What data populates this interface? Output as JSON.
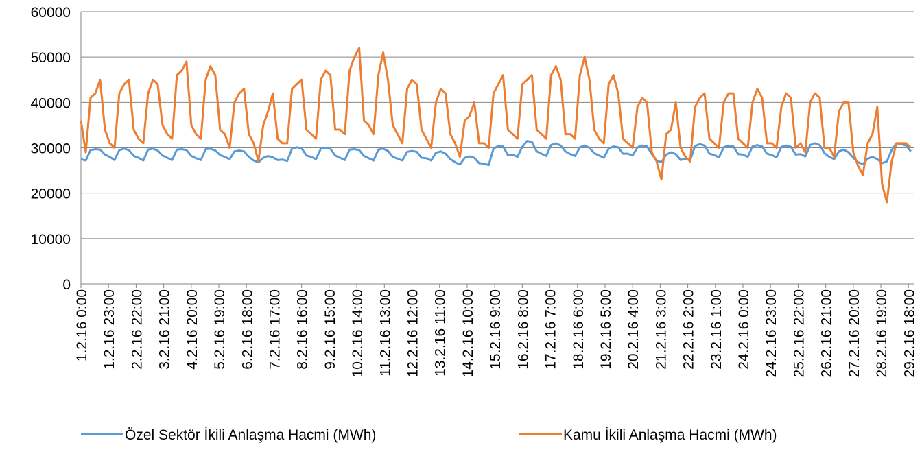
{
  "chart_data": {
    "type": "line",
    "x": [
      0,
      4,
      8,
      12,
      16,
      20,
      24,
      28,
      32,
      36,
      40,
      44,
      48,
      52,
      56,
      60,
      64,
      68,
      72,
      76,
      80,
      84,
      88,
      92,
      96,
      100,
      104,
      108,
      112,
      116,
      120,
      124,
      128,
      132,
      136,
      140,
      144,
      148,
      152,
      156,
      160,
      164,
      168,
      172,
      176,
      180,
      184,
      188,
      192,
      196,
      200,
      204,
      208,
      212,
      216,
      220,
      224,
      228,
      232,
      236,
      240,
      244,
      248,
      252,
      256,
      260,
      264,
      268,
      272,
      276,
      280,
      284,
      288,
      292,
      296,
      300,
      304,
      308,
      312,
      316,
      320,
      324,
      328,
      332,
      336,
      340,
      344,
      348,
      352,
      356,
      360,
      364,
      368,
      372,
      376,
      380,
      384,
      388,
      392,
      396,
      400,
      404,
      408,
      412,
      416,
      420,
      424,
      428,
      432,
      436,
      440,
      444,
      448,
      452,
      456,
      460,
      464,
      468,
      472,
      476,
      480,
      484,
      488,
      492,
      496,
      500,
      504,
      508,
      512,
      516,
      520,
      524,
      528,
      532,
      536,
      540,
      544,
      548,
      552,
      556,
      560,
      564,
      568,
      572,
      576,
      580,
      584,
      588,
      592,
      596,
      600,
      604,
      608,
      612,
      616,
      620,
      624,
      628,
      632,
      636,
      640,
      644,
      648,
      652,
      656,
      660,
      664,
      668,
      672,
      676,
      680,
      684,
      688,
      692
    ],
    "xlim": [
      0,
      695
    ],
    "xticks": [
      {
        "value": 0,
        "label": "1.2.16 0:00"
      },
      {
        "value": 23,
        "label": "1.2.16 23:00"
      },
      {
        "value": 46,
        "label": "2.2.16 22:00"
      },
      {
        "value": 69,
        "label": "3.2.16 21:00"
      },
      {
        "value": 92,
        "label": "4.2.16 20:00"
      },
      {
        "value": 115,
        "label": "5.2.16 19:00"
      },
      {
        "value": 138,
        "label": "6.2.16 18:00"
      },
      {
        "value": 161,
        "label": "7.2.16 17:00"
      },
      {
        "value": 184,
        "label": "8.2.16 16:00"
      },
      {
        "value": 207,
        "label": "9.2.16 15:00"
      },
      {
        "value": 230,
        "label": "10.2.16 14:00"
      },
      {
        "value": 253,
        "label": "11.2.16 13:00"
      },
      {
        "value": 276,
        "label": "12.2.16 12:00"
      },
      {
        "value": 299,
        "label": "13.2.16 11:00"
      },
      {
        "value": 322,
        "label": "14.2.16 10:00"
      },
      {
        "value": 345,
        "label": "15.2.16 9:00"
      },
      {
        "value": 368,
        "label": "16.2.16 8:00"
      },
      {
        "value": 391,
        "label": "17.2.16 7:00"
      },
      {
        "value": 414,
        "label": "18.2.16 6:00"
      },
      {
        "value": 437,
        "label": "19.2.16 5:00"
      },
      {
        "value": 460,
        "label": "20.2.16 4:00"
      },
      {
        "value": 483,
        "label": "21.2.16 3:00"
      },
      {
        "value": 506,
        "label": "22.2.16 2:00"
      },
      {
        "value": 529,
        "label": "23.2.16 1:00"
      },
      {
        "value": 552,
        "label": "24.2.16 0:00"
      },
      {
        "value": 575,
        "label": "24.2.16 23:00"
      },
      {
        "value": 598,
        "label": "25.2.16 22:00"
      },
      {
        "value": 621,
        "label": "26.2.16 21:00"
      },
      {
        "value": 644,
        "label": "27.2.16 20:00"
      },
      {
        "value": 667,
        "label": "28.2.16 19:00"
      },
      {
        "value": 690,
        "label": "29.2.16 18:00"
      }
    ],
    "ylim": [
      0,
      60000
    ],
    "yticks": [
      0,
      10000,
      20000,
      30000,
      40000,
      50000,
      60000
    ],
    "grid": true,
    "legend": "bottom",
    "series": [
      {
        "name": "Özel Sektör İkili Anlaşma Hacmi (MWh)",
        "color": "#5b9bd5",
        "values": [
          27500,
          27200,
          29500,
          29700,
          29600,
          28500,
          28000,
          27300,
          29500,
          29800,
          29500,
          28200,
          27800,
          27200,
          29600,
          29800,
          29400,
          28300,
          27800,
          27300,
          29600,
          29700,
          29500,
          28200,
          27700,
          27300,
          29700,
          29800,
          29400,
          28400,
          28000,
          27500,
          29200,
          29400,
          29200,
          28000,
          27200,
          26800,
          27800,
          28200,
          27900,
          27300,
          27400,
          27100,
          29800,
          30100,
          29900,
          28300,
          28000,
          27500,
          29800,
          30000,
          29800,
          28300,
          27800,
          27300,
          29600,
          29700,
          29500,
          28200,
          27700,
          27200,
          29600,
          29800,
          29300,
          28000,
          27600,
          27200,
          29100,
          29300,
          29100,
          27800,
          27700,
          27200,
          28900,
          29200,
          28700,
          27500,
          26800,
          26300,
          27800,
          28100,
          27800,
          26600,
          26500,
          26200,
          29800,
          30400,
          30300,
          28400,
          28500,
          28000,
          30200,
          31500,
          31300,
          29200,
          28700,
          28200,
          30600,
          31000,
          30500,
          29200,
          28600,
          28200,
          30100,
          30500,
          30000,
          28800,
          28300,
          27800,
          29800,
          30300,
          30100,
          28700,
          28700,
          28300,
          30100,
          30500,
          30300,
          28600,
          27200,
          26800,
          28500,
          29000,
          28600,
          27300,
          27600,
          27300,
          30400,
          30800,
          30500,
          28700,
          28400,
          27900,
          30100,
          30500,
          30300,
          28600,
          28500,
          28000,
          30300,
          30600,
          30300,
          28700,
          28400,
          27900,
          30200,
          30500,
          30200,
          28500,
          28600,
          28100,
          30600,
          31000,
          30600,
          28800,
          28000,
          27500,
          29200,
          29600,
          29000,
          27800,
          26800,
          26400,
          27600,
          28000,
          27500,
          26600,
          27000,
          29500,
          31000,
          30800,
          30500,
          29200
        ]
      },
      {
        "name": "Kamu İkili Anlaşma Hacmi (MWh)",
        "color": "#ed7d31",
        "values": [
          36000,
          29000,
          41000,
          42000,
          45000,
          34000,
          31000,
          30000,
          42000,
          44000,
          45000,
          34000,
          32000,
          31000,
          42000,
          45000,
          44000,
          35000,
          33000,
          32000,
          46000,
          47000,
          49000,
          35000,
          33000,
          32000,
          45000,
          48000,
          46000,
          34000,
          33000,
          30000,
          40000,
          42000,
          43000,
          33000,
          31000,
          27000,
          35000,
          38000,
          42000,
          32000,
          31000,
          31000,
          43000,
          44000,
          45000,
          34000,
          33000,
          32000,
          45000,
          47000,
          46000,
          34000,
          34000,
          33000,
          47000,
          50000,
          52000,
          36000,
          35000,
          33000,
          46000,
          51000,
          45000,
          35000,
          33000,
          31000,
          43000,
          45000,
          44000,
          34000,
          32000,
          30000,
          40000,
          43000,
          42000,
          33000,
          31000,
          28000,
          36000,
          37000,
          40000,
          31000,
          31000,
          30000,
          42000,
          44000,
          46000,
          34000,
          33000,
          32000,
          44000,
          45000,
          46000,
          34000,
          33000,
          32000,
          46000,
          48000,
          45000,
          33000,
          33000,
          32000,
          46000,
          50000,
          45000,
          34000,
          32000,
          31000,
          44000,
          46000,
          42000,
          32000,
          31000,
          30000,
          39000,
          41000,
          40000,
          29000,
          27000,
          23000,
          33000,
          34000,
          40000,
          30000,
          28000,
          27000,
          39000,
          41000,
          42000,
          32000,
          31000,
          30000,
          40000,
          42000,
          42000,
          32000,
          31000,
          30000,
          40000,
          43000,
          41000,
          31000,
          31000,
          30000,
          39000,
          42000,
          41000,
          30000,
          31000,
          29000,
          40000,
          42000,
          41000,
          30000,
          30000,
          28000,
          38000,
          40000,
          40000,
          29000,
          26000,
          24000,
          31000,
          33000,
          39000,
          22000,
          18000,
          27000,
          31000,
          31000,
          31000,
          30000
        ]
      }
    ]
  }
}
